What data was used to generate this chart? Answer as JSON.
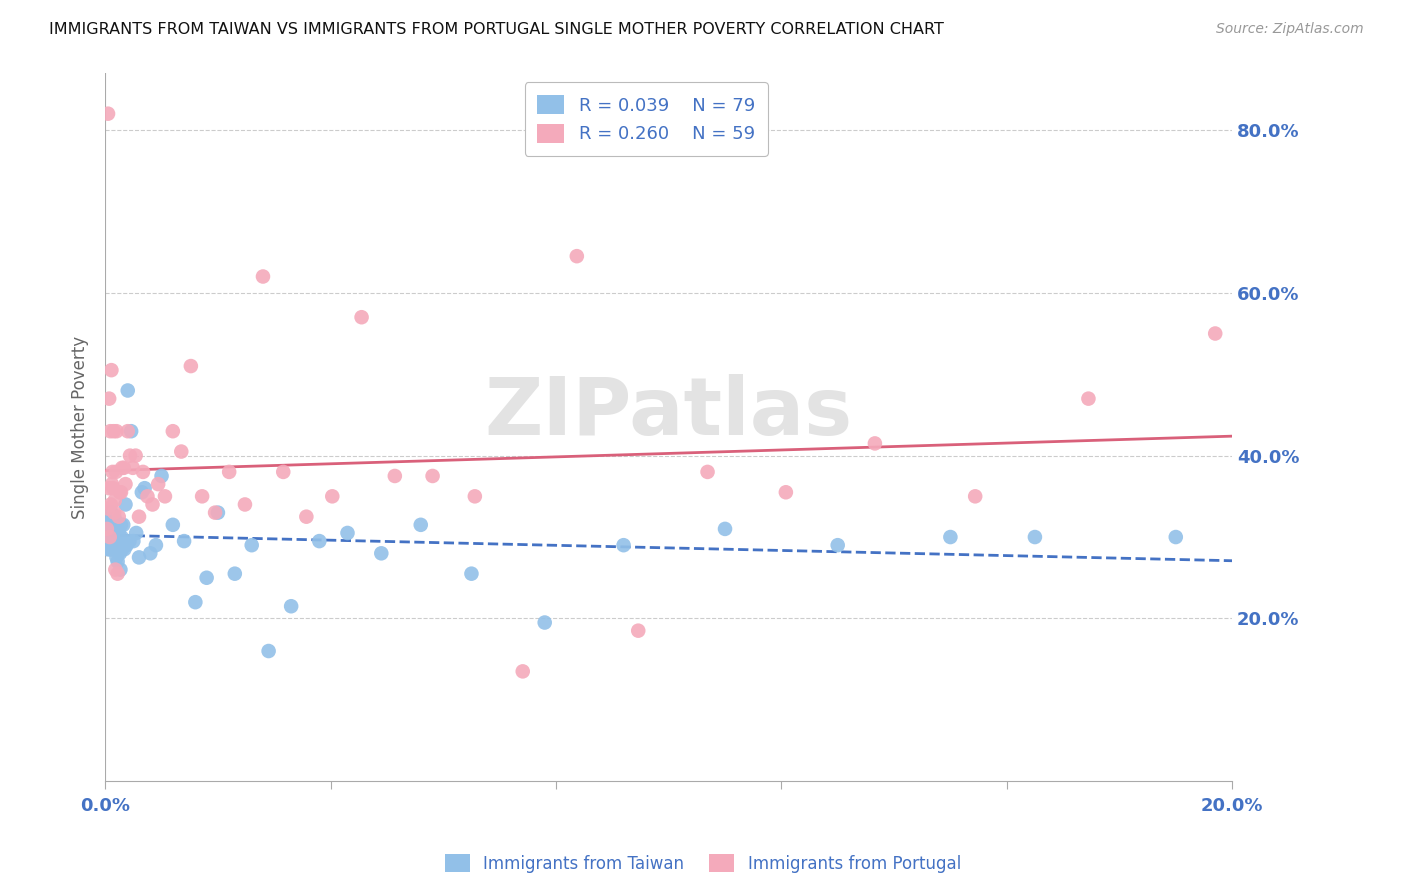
{
  "title": "IMMIGRANTS FROM TAIWAN VS IMMIGRANTS FROM PORTUGAL SINGLE MOTHER POVERTY CORRELATION CHART",
  "source": "Source: ZipAtlas.com",
  "ylabel": "Single Mother Poverty",
  "legend_label_x": "Immigrants from Taiwan",
  "legend_label_y": "Immigrants from Portugal",
  "taiwan_R": 0.039,
  "taiwan_N": 79,
  "portugal_R": 0.26,
  "portugal_N": 59,
  "taiwan_color": "#92C0E8",
  "portugal_color": "#F4AABB",
  "taiwan_line_color": "#4472C4",
  "portugal_line_color": "#D9607A",
  "axis_label_color": "#4472C4",
  "watermark_text": "ZIPatlas",
  "xlim": [
    0.0,
    0.2
  ],
  "ylim": [
    0.0,
    0.87
  ],
  "yticks": [
    0.2,
    0.4,
    0.6,
    0.8
  ],
  "xtick_left_label": "0.0%",
  "xtick_right_label": "20.0%",
  "background_color": "#FFFFFF",
  "grid_color": "#CCCCCC",
  "taiwan_scatter_x": [
    0.0003,
    0.0005,
    0.0005,
    0.0006,
    0.0007,
    0.0007,
    0.0008,
    0.0008,
    0.0009,
    0.0009,
    0.001,
    0.001,
    0.0011,
    0.0011,
    0.0012,
    0.0012,
    0.0013,
    0.0013,
    0.0014,
    0.0014,
    0.0015,
    0.0015,
    0.0016,
    0.0016,
    0.0017,
    0.0017,
    0.0018,
    0.0018,
    0.0019,
    0.0019,
    0.002,
    0.002,
    0.0021,
    0.0022,
    0.0022,
    0.0023,
    0.0024,
    0.0025,
    0.0026,
    0.0027,
    0.0028,
    0.0029,
    0.003,
    0.0032,
    0.0034,
    0.0036,
    0.0038,
    0.004,
    0.0043,
    0.0046,
    0.005,
    0.0055,
    0.006,
    0.0065,
    0.007,
    0.008,
    0.009,
    0.01,
    0.012,
    0.014,
    0.016,
    0.018,
    0.02,
    0.023,
    0.026,
    0.029,
    0.033,
    0.038,
    0.043,
    0.049,
    0.056,
    0.065,
    0.078,
    0.092,
    0.11,
    0.13,
    0.15,
    0.165,
    0.19
  ],
  "taiwan_scatter_y": [
    0.3,
    0.285,
    0.32,
    0.31,
    0.295,
    0.33,
    0.285,
    0.315,
    0.305,
    0.325,
    0.29,
    0.31,
    0.285,
    0.33,
    0.3,
    0.32,
    0.29,
    0.31,
    0.295,
    0.315,
    0.285,
    0.305,
    0.325,
    0.29,
    0.31,
    0.3,
    0.32,
    0.285,
    0.305,
    0.295,
    0.275,
    0.315,
    0.29,
    0.27,
    0.31,
    0.285,
    0.305,
    0.295,
    0.28,
    0.26,
    0.315,
    0.3,
    0.285,
    0.315,
    0.285,
    0.34,
    0.29,
    0.48,
    0.295,
    0.43,
    0.295,
    0.305,
    0.275,
    0.355,
    0.36,
    0.28,
    0.29,
    0.375,
    0.315,
    0.295,
    0.22,
    0.25,
    0.33,
    0.255,
    0.29,
    0.16,
    0.215,
    0.295,
    0.305,
    0.28,
    0.315,
    0.255,
    0.195,
    0.29,
    0.31,
    0.29,
    0.3,
    0.3,
    0.3
  ],
  "portugal_scatter_x": [
    0.0003,
    0.0005,
    0.0005,
    0.0007,
    0.0007,
    0.0008,
    0.0009,
    0.001,
    0.0011,
    0.0012,
    0.0013,
    0.0014,
    0.0015,
    0.0016,
    0.0017,
    0.0018,
    0.0019,
    0.002,
    0.0022,
    0.0024,
    0.0026,
    0.0028,
    0.003,
    0.0033,
    0.0036,
    0.004,
    0.0044,
    0.0049,
    0.0054,
    0.006,
    0.0067,
    0.0075,
    0.0084,
    0.0094,
    0.0106,
    0.012,
    0.0135,
    0.0152,
    0.0172,
    0.0195,
    0.022,
    0.0248,
    0.028,
    0.0316,
    0.0357,
    0.0403,
    0.0455,
    0.0514,
    0.0581,
    0.0656,
    0.0741,
    0.0837,
    0.0946,
    0.1069,
    0.1208,
    0.1366,
    0.1544,
    0.1745,
    0.197
  ],
  "portugal_scatter_y": [
    0.31,
    0.82,
    0.335,
    0.36,
    0.47,
    0.3,
    0.43,
    0.34,
    0.505,
    0.365,
    0.38,
    0.36,
    0.43,
    0.33,
    0.345,
    0.26,
    0.38,
    0.43,
    0.255,
    0.325,
    0.355,
    0.355,
    0.385,
    0.385,
    0.365,
    0.43,
    0.4,
    0.385,
    0.4,
    0.325,
    0.38,
    0.35,
    0.34,
    0.365,
    0.35,
    0.43,
    0.405,
    0.51,
    0.35,
    0.33,
    0.38,
    0.34,
    0.62,
    0.38,
    0.325,
    0.35,
    0.57,
    0.375,
    0.375,
    0.35,
    0.135,
    0.645,
    0.185,
    0.38,
    0.355,
    0.415,
    0.35,
    0.47,
    0.55
  ]
}
